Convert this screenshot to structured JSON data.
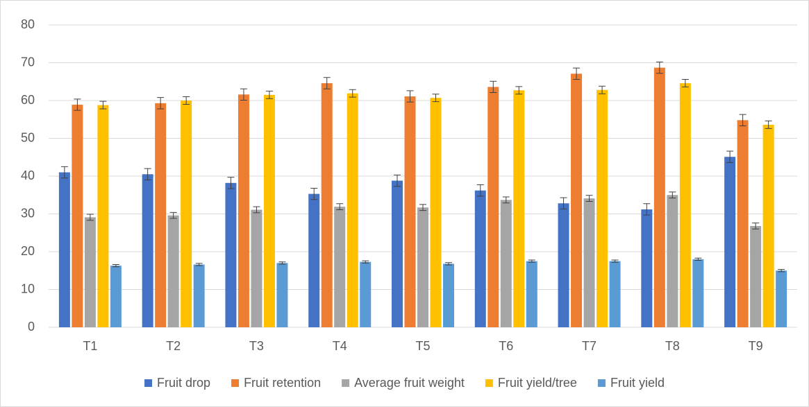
{
  "chart_data": {
    "type": "bar",
    "categories": [
      "T1",
      "T2",
      "T3",
      "T4",
      "T5",
      "T6",
      "T7",
      "T8",
      "T9"
    ],
    "series": [
      {
        "name": "Fruit drop",
        "color": "#4472c4",
        "values": [
          41,
          40.5,
          38.2,
          35.3,
          38.8,
          36.2,
          32.8,
          31.2,
          45.1
        ],
        "errors": [
          1.5,
          1.5,
          1.5,
          1.5,
          1.5,
          1.5,
          1.5,
          1.5,
          1.5
        ]
      },
      {
        "name": "Fruit retention",
        "color": "#ed7d31",
        "values": [
          58.9,
          59.3,
          61.6,
          64.6,
          61.1,
          63.6,
          67.1,
          68.7,
          54.8
        ],
        "errors": [
          1.5,
          1.5,
          1.5,
          1.5,
          1.5,
          1.5,
          1.5,
          1.5,
          1.5
        ]
      },
      {
        "name": "Average fruit weight",
        "color": "#a5a5a5",
        "values": [
          29.1,
          29.6,
          31.1,
          31.9,
          31.7,
          33.7,
          34.1,
          35,
          26.8
        ],
        "errors": [
          0.8,
          0.8,
          0.8,
          0.8,
          0.8,
          0.8,
          0.8,
          0.8,
          0.8
        ]
      },
      {
        "name": "Fruit yield/tree",
        "color": "#ffc000",
        "values": [
          58.8,
          60,
          61.5,
          61.9,
          60.7,
          62.7,
          62.8,
          64.6,
          53.6
        ],
        "errors": [
          1,
          1,
          1,
          1,
          1,
          1,
          1,
          1,
          1
        ]
      },
      {
        "name": "Fruit yield",
        "color": "#5b9bd5",
        "values": [
          16.3,
          16.6,
          17,
          17.3,
          16.8,
          17.5,
          17.5,
          18,
          15
        ],
        "errors": [
          0.3,
          0.3,
          0.3,
          0.3,
          0.3,
          0.3,
          0.3,
          0.3,
          0.3
        ]
      }
    ],
    "ylim": [
      0,
      80
    ],
    "yticks": [
      0,
      10,
      20,
      30,
      40,
      50,
      60,
      70,
      80
    ],
    "grid": true,
    "legend": "bottom"
  }
}
